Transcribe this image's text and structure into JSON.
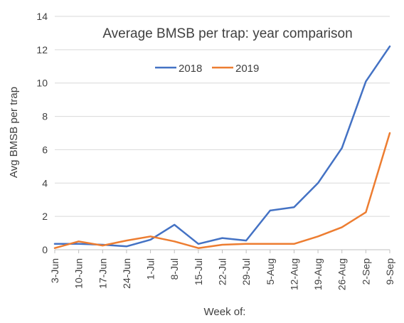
{
  "chart_data": {
    "type": "line",
    "title": "Average BMSB per trap: year comparison",
    "xlabel": "Week of:",
    "ylabel": "Avg BMSB per trap",
    "categories": [
      "3-Jun",
      "10-Jun",
      "17-Jun",
      "24-Jun",
      "1-Jul",
      "8-Jul",
      "15-Jul",
      "22-Jul",
      "29-Jul",
      "5-Aug",
      "12-Aug",
      "19-Aug",
      "26-Aug",
      "2-Sep",
      "9-Sep"
    ],
    "ylim": [
      0,
      14
    ],
    "yticks": [
      0,
      2,
      4,
      6,
      8,
      10,
      12,
      14
    ],
    "grid": true,
    "legend_position": "top",
    "series": [
      {
        "name": "2018",
        "color": "#4472C4",
        "values": [
          0.35,
          0.35,
          0.3,
          0.2,
          0.6,
          1.5,
          0.35,
          0.7,
          0.55,
          2.35,
          2.55,
          4.0,
          6.1,
          10.1,
          12.2
        ]
      },
      {
        "name": "2019",
        "color": "#ED7D31",
        "values": [
          0.1,
          0.5,
          0.25,
          0.55,
          0.8,
          0.5,
          0.1,
          0.3,
          0.35,
          0.35,
          0.35,
          0.8,
          1.35,
          2.25,
          7.0
        ]
      }
    ]
  }
}
